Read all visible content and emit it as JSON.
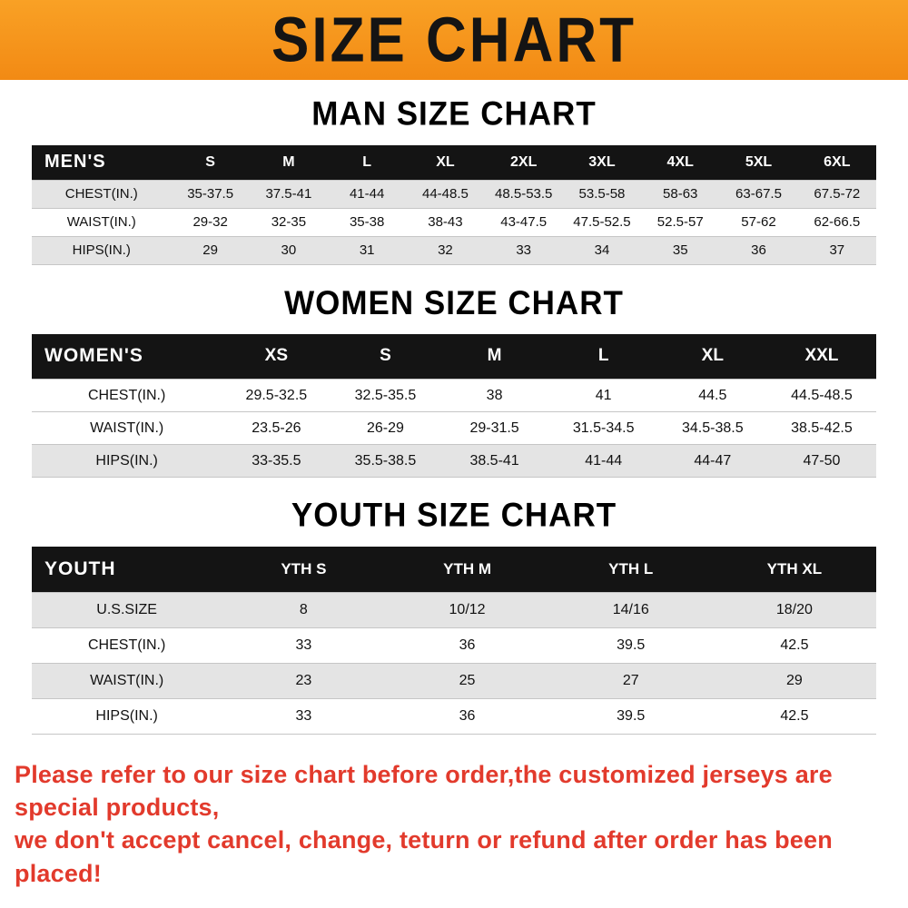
{
  "banner": {
    "title": "SIZE CHART",
    "bg_color": "#f7941e"
  },
  "sections": [
    {
      "heading": "MAN SIZE CHART",
      "table": {
        "title": "MEN'S",
        "columns": [
          "S",
          "M",
          "L",
          "XL",
          "2XL",
          "3XL",
          "4XL",
          "5XL",
          "6XL"
        ],
        "rows": [
          {
            "label": "CHEST(IN.)",
            "values": [
              "35-37.5",
              "37.5-41",
              "41-44",
              "44-48.5",
              "48.5-53.5",
              "53.5-58",
              "58-63",
              "63-67.5",
              "67.5-72"
            ]
          },
          {
            "label": "WAIST(IN.)",
            "values": [
              "29-32",
              "32-35",
              "35-38",
              "38-43",
              "43-47.5",
              "47.5-52.5",
              "52.5-57",
              "57-62",
              "62-66.5"
            ]
          },
          {
            "label": "HIPS(IN.)",
            "values": [
              "29",
              "30",
              "31",
              "32",
              "33",
              "34",
              "35",
              "36",
              "37"
            ]
          }
        ]
      }
    },
    {
      "heading": "WOMEN SIZE CHART",
      "table": {
        "title": "WOMEN'S",
        "columns": [
          "XS",
          "S",
          "M",
          "L",
          "XL",
          "XXL"
        ],
        "rows": [
          {
            "label": "CHEST(IN.)",
            "values": [
              "29.5-32.5",
              "32.5-35.5",
              "38",
              "41",
              "44.5",
              "44.5-48.5"
            ]
          },
          {
            "label": "WAIST(IN.)",
            "values": [
              "23.5-26",
              "26-29",
              "29-31.5",
              "31.5-34.5",
              "34.5-38.5",
              "38.5-42.5"
            ]
          },
          {
            "label": "HIPS(IN.)",
            "values": [
              "33-35.5",
              "35.5-38.5",
              "38.5-41",
              "41-44",
              "44-47",
              "47-50"
            ]
          }
        ]
      }
    },
    {
      "heading": "YOUTH SIZE CHART",
      "table": {
        "title": "YOUTH",
        "columns": [
          "YTH S",
          "YTH M",
          "YTH L",
          "YTH XL"
        ],
        "rows": [
          {
            "label": "U.S.SIZE",
            "values": [
              "8",
              "10/12",
              "14/16",
              "18/20"
            ]
          },
          {
            "label": "CHEST(IN.)",
            "values": [
              "33",
              "36",
              "39.5",
              "42.5"
            ]
          },
          {
            "label": "WAIST(IN.)",
            "values": [
              "23",
              "25",
              "27",
              "29"
            ]
          },
          {
            "label": "HIPS(IN.)",
            "values": [
              "33",
              "36",
              "39.5",
              "42.5"
            ]
          }
        ]
      }
    }
  ],
  "footer": {
    "line1": "Please refer to our size chart before order,the customized jerseys are special products,",
    "line2": "we don't accept cancel, change, teturn or refund after order has been placed!",
    "text_color": "#e23a2c"
  }
}
